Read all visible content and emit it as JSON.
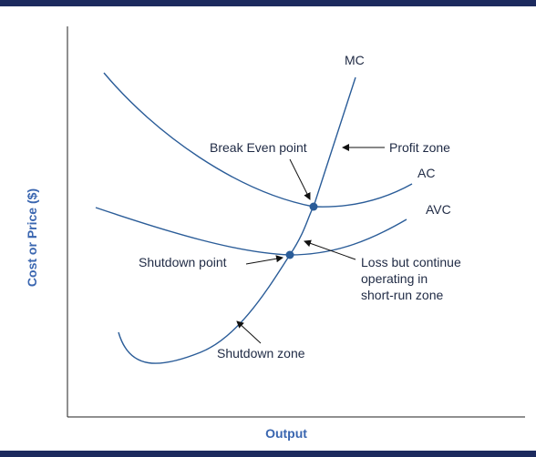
{
  "chart_data": {
    "type": "line",
    "title": "",
    "xlabel": "Output",
    "ylabel": "Cost or Price ($)",
    "curves": [
      {
        "name": "MC"
      },
      {
        "name": "AC"
      },
      {
        "name": "AVC"
      }
    ],
    "points": [
      {
        "label": "Break Even point",
        "where": "MC = AC (minimum of AC)"
      },
      {
        "label": "Shutdown point",
        "where": "MC = AVC (minimum of AVC)"
      }
    ],
    "annotations": [
      {
        "text": "Profit zone"
      },
      {
        "text_lines": [
          "Loss but continue",
          "operating in",
          "short-run zone"
        ]
      },
      {
        "text": "Shutdown zone"
      }
    ],
    "grid": false,
    "colors": {
      "curve": "#2a5c98",
      "axis_title": "#3a66b0",
      "background_band": "#1c2a5e"
    }
  }
}
